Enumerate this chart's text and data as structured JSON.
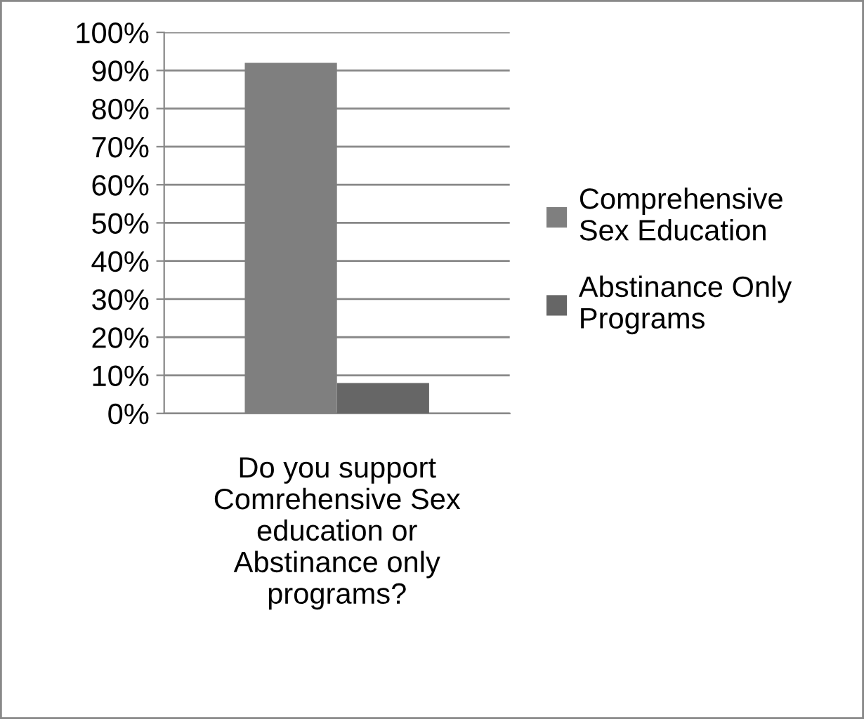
{
  "chart_data": {
    "type": "bar",
    "categories": [
      "Do you support Comrehensive Sex education or Abstinance only programs?"
    ],
    "series": [
      {
        "name": "Comprehensive Sex Education",
        "color": "#7f7f7f",
        "values": [
          92
        ]
      },
      {
        "name": "Abstinance Only Programs",
        "color": "#666666",
        "values": [
          8
        ]
      }
    ],
    "ylim": [
      0,
      100
    ],
    "yticks": [
      {
        "value": 0,
        "label": "0%"
      },
      {
        "value": 10,
        "label": "10%"
      },
      {
        "value": 20,
        "label": "20%"
      },
      {
        "value": 30,
        "label": "30%"
      },
      {
        "value": 40,
        "label": "40%"
      },
      {
        "value": 50,
        "label": "50%"
      },
      {
        "value": 60,
        "label": "60%"
      },
      {
        "value": 70,
        "label": "70%"
      },
      {
        "value": 80,
        "label": "80%"
      },
      {
        "value": 90,
        "label": "90%"
      },
      {
        "value": 100,
        "label": "100%"
      }
    ],
    "grid": "y",
    "legend": "right"
  }
}
